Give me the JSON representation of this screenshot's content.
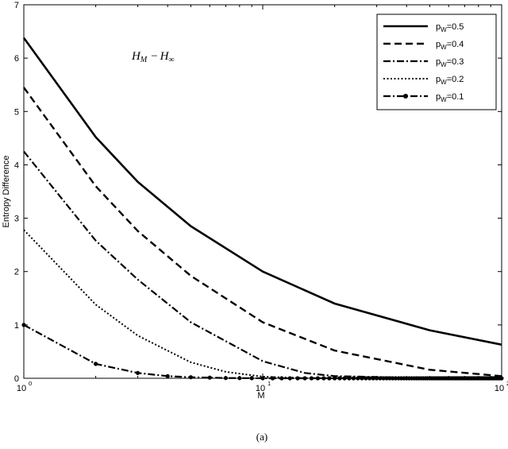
{
  "chart_data": {
    "type": "line",
    "x_scale": "log",
    "xlim": [
      1,
      100
    ],
    "ylim": [
      0,
      7
    ],
    "xlabel": "M",
    "ylabel": "Entropy Difference",
    "y_ticks": [
      "0",
      "1",
      "2",
      "3",
      "4",
      "5",
      "6",
      "7"
    ],
    "x_ticks": [
      {
        "base": "10",
        "exp": "0"
      },
      {
        "base": "10",
        "exp": "1"
      },
      {
        "base": "10",
        "exp": "2"
      }
    ],
    "annotation": {
      "h": "H",
      "sub1": "M",
      "op": "−",
      "sub2": "∞"
    },
    "legend_position": "top-right",
    "grid": false,
    "series": [
      {
        "label_main": "p",
        "label_sub": "W",
        "label_rest": "=0.5",
        "style": "solid",
        "x": [
          1,
          2,
          3,
          5,
          10,
          20,
          50,
          100
        ],
        "y": [
          6.38,
          4.52,
          3.68,
          2.85,
          2.0,
          1.4,
          0.9,
          0.63
        ]
      },
      {
        "label_main": "p",
        "label_sub": "W",
        "label_rest": "=0.4",
        "style": "dashed",
        "x": [
          1,
          2,
          3,
          5,
          10,
          20,
          50,
          100
        ],
        "y": [
          5.45,
          3.6,
          2.76,
          1.92,
          1.05,
          0.52,
          0.16,
          0.04
        ]
      },
      {
        "label_main": "p",
        "label_sub": "W",
        "label_rest": "=0.3",
        "style": "dashdot",
        "x": [
          1,
          2,
          3,
          5,
          10,
          15,
          20,
          50,
          100
        ],
        "y": [
          4.25,
          2.58,
          1.85,
          1.05,
          0.32,
          0.1,
          0.04,
          0.005,
          0.0
        ]
      },
      {
        "label_main": "p",
        "label_sub": "W",
        "label_rest": "=0.2",
        "style": "dotted",
        "x": [
          1,
          2,
          3,
          5,
          7,
          10,
          15,
          20,
          100
        ],
        "y": [
          2.78,
          1.38,
          0.8,
          0.3,
          0.12,
          0.03,
          0.005,
          0.0,
          0.0
        ]
      },
      {
        "label_main": "p",
        "label_sub": "W",
        "label_rest": "=0.1",
        "style": "dashdot-marker",
        "x": [
          1,
          2,
          3,
          4,
          5,
          7,
          10,
          100
        ],
        "y": [
          1.0,
          0.27,
          0.1,
          0.04,
          0.02,
          0.005,
          0.0,
          0.0
        ]
      }
    ]
  },
  "caption": "(a)"
}
